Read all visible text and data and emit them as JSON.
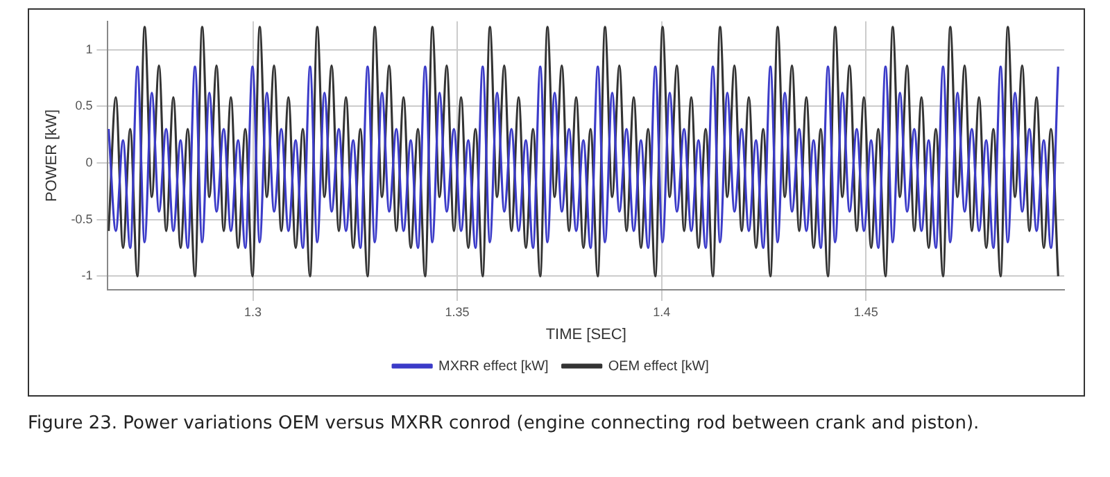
{
  "chart_data": {
    "type": "line",
    "xlabel": "TIME [SEC]",
    "ylabel": "POWER [kW]",
    "annotations": [
      "Figure 23.  Power variations OEM versus MXRR conrod (engine connecting rod between crank and piston)."
    ],
    "x": [
      1.2647,
      1.26646,
      1.26822,
      1.26998,
      1.27174,
      1.2735,
      1.27526,
      1.27702,
      1.27878,
      1.28054,
      1.2823,
      1.28406,
      1.28582,
      1.28758,
      1.28934,
      1.2911,
      1.29286,
      1.29462,
      1.29638,
      1.29814,
      1.2999,
      1.30166,
      1.30342,
      1.30518,
      1.30694,
      1.3087,
      1.31046,
      1.31222,
      1.31398,
      1.31574,
      1.3175,
      1.31926,
      1.32102,
      1.32278,
      1.32454,
      1.3263,
      1.32806,
      1.32982,
      1.33158,
      1.33334,
      1.3351,
      1.33686,
      1.33862,
      1.34038,
      1.34214,
      1.3439,
      1.34566,
      1.34742,
      1.34918,
      1.35094,
      1.3527,
      1.35446,
      1.35622,
      1.35798,
      1.35974,
      1.3615,
      1.36326,
      1.36502,
      1.36678,
      1.36854,
      1.3703,
      1.37206,
      1.37382,
      1.37558,
      1.37734,
      1.3791,
      1.38086,
      1.38262,
      1.38438,
      1.38614,
      1.3879,
      1.38966,
      1.39142,
      1.39318,
      1.39494,
      1.3967,
      1.39846,
      1.40022,
      1.40198,
      1.40374,
      1.4055,
      1.40726,
      1.40902,
      1.41078,
      1.41254,
      1.4143,
      1.41606,
      1.41782,
      1.41958,
      1.42134,
      1.4231,
      1.42486,
      1.42662,
      1.42838,
      1.43014,
      1.4319,
      1.43366,
      1.43542,
      1.43718,
      1.43894,
      1.4407,
      1.44246,
      1.44422,
      1.44598,
      1.44774,
      1.4495,
      1.45126,
      1.45302,
      1.45478,
      1.45654,
      1.4583,
      1.46006,
      1.46182,
      1.46358,
      1.46534,
      1.4671,
      1.46886,
      1.47062,
      1.47238,
      1.47414,
      1.4759,
      1.47766,
      1.47942,
      1.48118,
      1.48294,
      1.4847,
      1.48646,
      1.48822,
      1.48998,
      1.49174,
      1.4935,
      1.49526,
      1.49702
    ],
    "series": [
      {
        "name": "MXRR effect [kW]",
        "color": "#3b3bc8",
        "values": [
          0.3,
          -0.6,
          0.2,
          -0.75,
          0.85,
          -0.7,
          0.62,
          -0.43,
          0.3,
          -0.6,
          0.2,
          -0.75,
          0.85,
          -0.7,
          0.62,
          -0.43,
          0.3,
          -0.6,
          0.2,
          -0.75,
          0.85,
          -0.7,
          0.62,
          -0.43,
          0.3,
          -0.6,
          0.2,
          -0.75,
          0.85,
          -0.7,
          0.62,
          -0.43,
          0.3,
          -0.6,
          0.2,
          -0.75,
          0.85,
          -0.7,
          0.62,
          -0.43,
          0.3,
          -0.6,
          0.2,
          -0.75,
          0.85,
          -0.7,
          0.62,
          -0.43,
          0.3,
          -0.6,
          0.2,
          -0.75,
          0.85,
          -0.7,
          0.62,
          -0.43,
          0.3,
          -0.6,
          0.2,
          -0.75,
          0.85,
          -0.7,
          0.62,
          -0.43,
          0.3,
          -0.6,
          0.2,
          -0.75,
          0.85,
          -0.7,
          0.62,
          -0.43,
          0.3,
          -0.6,
          0.2,
          -0.75,
          0.85,
          -0.7,
          0.62,
          -0.43,
          0.3,
          -0.6,
          0.2,
          -0.75,
          0.85,
          -0.7,
          0.62,
          -0.43,
          0.3,
          -0.6,
          0.2,
          -0.75,
          0.85,
          -0.7,
          0.62,
          -0.43,
          0.3,
          -0.6,
          0.2,
          -0.75,
          0.85,
          -0.7,
          0.62,
          -0.43,
          0.3,
          -0.6,
          0.2,
          -0.75,
          0.85,
          -0.7,
          0.62,
          -0.43,
          0.3,
          -0.6,
          0.2,
          -0.75,
          0.85,
          -0.7,
          0.62,
          -0.43,
          0.3,
          -0.6,
          0.2,
          -0.75,
          0.85,
          -0.7,
          0.62,
          -0.43,
          0.3,
          -0.6,
          0.2,
          -0.75,
          0.85
        ]
      },
      {
        "name": "OEM effect [kW]",
        "color": "#333333",
        "values": [
          -0.6,
          0.58,
          -0.75,
          0.3,
          -1.0,
          1.2,
          -0.3,
          0.86,
          -0.6,
          0.58,
          -0.75,
          0.3,
          -1.0,
          1.2,
          -0.3,
          0.86,
          -0.6,
          0.58,
          -0.75,
          0.3,
          -1.0,
          1.2,
          -0.3,
          0.86,
          -0.6,
          0.58,
          -0.75,
          0.3,
          -1.0,
          1.2,
          -0.3,
          0.86,
          -0.6,
          0.58,
          -0.75,
          0.3,
          -1.0,
          1.2,
          -0.3,
          0.86,
          -0.6,
          0.58,
          -0.75,
          0.3,
          -1.0,
          1.2,
          -0.3,
          0.86,
          -0.6,
          0.58,
          -0.75,
          0.3,
          -1.0,
          1.2,
          -0.3,
          0.86,
          -0.6,
          0.58,
          -0.75,
          0.3,
          -1.0,
          1.2,
          -0.3,
          0.86,
          -0.6,
          0.58,
          -0.75,
          0.3,
          -1.0,
          1.2,
          -0.3,
          0.86,
          -0.6,
          0.58,
          -0.75,
          0.3,
          -1.0,
          1.2,
          -0.3,
          0.86,
          -0.6,
          0.58,
          -0.75,
          0.3,
          -1.0,
          1.2,
          -0.3,
          0.86,
          -0.6,
          0.58,
          -0.75,
          0.3,
          -1.0,
          1.2,
          -0.3,
          0.86,
          -0.6,
          0.58,
          -0.75,
          0.3,
          -1.0,
          1.2,
          -0.3,
          0.86,
          -0.6,
          0.58,
          -0.75,
          0.3,
          -1.0,
          1.2,
          -0.3,
          0.86,
          -0.6,
          0.58,
          -0.75,
          0.3,
          -1.0,
          1.2,
          -0.3,
          0.86,
          -0.6,
          0.58,
          -0.75,
          0.3,
          -1.0,
          1.2,
          -0.3,
          0.86,
          -0.6,
          0.58,
          -0.75,
          0.3,
          -1.0
        ]
      }
    ],
    "xlim": [
      1.2645,
      1.4985
    ],
    "xticks": [
      1.3,
      1.35,
      1.4,
      1.45
    ],
    "ylim": [
      -1.12,
      1.25
    ],
    "yticks": [
      -1,
      -0.5,
      0,
      0.5,
      1
    ],
    "grid": true,
    "legend": "bottom",
    "line_style": "solid"
  }
}
